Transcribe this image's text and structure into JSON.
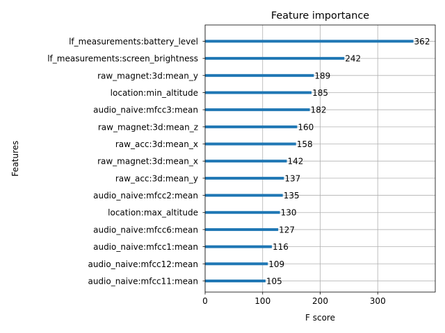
{
  "chart_data": {
    "type": "bar",
    "orientation": "horizontal",
    "title": "Feature importance",
    "xlabel": "F score",
    "ylabel": "Features",
    "xlim": [
      0,
      400
    ],
    "xticks": [
      0,
      100,
      200,
      300
    ],
    "grid": true,
    "bar_color": "#1f77b4",
    "categories": [
      "lf_measurements:battery_level",
      "lf_measurements:screen_brightness",
      "raw_magnet:3d:mean_y",
      "location:min_altitude",
      "audio_naive:mfcc3:mean",
      "raw_magnet:3d:mean_z",
      "raw_acc:3d:mean_x",
      "raw_magnet:3d:mean_x",
      "raw_acc:3d:mean_y",
      "audio_naive:mfcc2:mean",
      "location:max_altitude",
      "audio_naive:mfcc6:mean",
      "audio_naive:mfcc1:mean",
      "audio_naive:mfcc12:mean",
      "audio_naive:mfcc11:mean"
    ],
    "values": [
      362,
      242,
      189,
      185,
      182,
      160,
      158,
      142,
      137,
      135,
      130,
      127,
      116,
      109,
      105
    ]
  }
}
